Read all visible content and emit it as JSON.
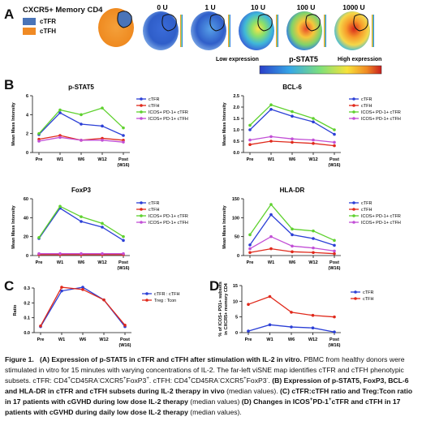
{
  "panelA": {
    "letter": "A",
    "title": "CXCR5+ Memory CD4",
    "legend": [
      {
        "label": "cTFR",
        "color": "#4a74b8"
      },
      {
        "label": "cTFH",
        "color": "#f08a24"
      }
    ],
    "doses": [
      "0 U",
      "1 U",
      "10 U",
      "100 U",
      "1000 U"
    ],
    "colorbar_low": "Low expression",
    "colorbar_title": "p-STAT5",
    "colorbar_high": "High expression"
  },
  "panelB": {
    "letter": "B",
    "ylabel": "Mean Mass Intensity"
  },
  "panelC": {
    "letter": "C",
    "ylabel": "Ratio"
  },
  "panelD": {
    "letter": "D",
    "ylabel": "% of ICOS+ PD1+ subsets in CXCR5+ memory CD4"
  },
  "colors": {
    "cTFR": "#2b3fd6",
    "cTFH": "#e0291b",
    "icos_tfr": "#5fd12e",
    "icos_tfh": "#c24fd6"
  },
  "chart_data": [
    {
      "type": "line",
      "title": "p-STAT5",
      "ylabel": "Mean Mass Intensity",
      "x": [
        "Pre",
        "W1",
        "W6",
        "W12",
        "Post (W16)"
      ],
      "ylim": [
        0,
        6
      ],
      "yticks": [
        0,
        2,
        4,
        6
      ],
      "series": [
        {
          "name": "cTFR",
          "values": [
            1.9,
            4.2,
            3.0,
            2.8,
            1.8
          ]
        },
        {
          "name": "cTFH",
          "values": [
            1.4,
            1.8,
            1.3,
            1.5,
            1.3
          ]
        },
        {
          "name": "ICOS+ PD-1+ cTFR",
          "values": [
            2.0,
            4.5,
            4.0,
            4.7,
            2.6
          ]
        },
        {
          "name": "ICOS+ PD-1+ cTFH",
          "values": [
            1.2,
            1.6,
            1.3,
            1.3,
            1.1
          ]
        }
      ]
    },
    {
      "type": "line",
      "title": "BCL-6",
      "ylabel": "Mean Mass Intensity",
      "x": [
        "Pre",
        "W1",
        "W6",
        "W12",
        "Post (W16)"
      ],
      "ylim": [
        0,
        2.5
      ],
      "yticks": [
        0.0,
        0.5,
        1.0,
        1.5,
        2.0,
        2.5
      ],
      "series": [
        {
          "name": "cTFR",
          "values": [
            1.0,
            1.9,
            1.6,
            1.35,
            0.8
          ]
        },
        {
          "name": "cTFH",
          "values": [
            0.35,
            0.5,
            0.45,
            0.4,
            0.3
          ]
        },
        {
          "name": "ICOS+ PD-1+ cTFR",
          "values": [
            1.2,
            2.1,
            1.8,
            1.5,
            1.0
          ]
        },
        {
          "name": "ICOS+ PD-1+ cTFH",
          "values": [
            0.55,
            0.7,
            0.6,
            0.55,
            0.45
          ]
        }
      ]
    },
    {
      "type": "line",
      "title": "FoxP3",
      "ylabel": "Mean Mass Intensity",
      "x": [
        "Pre",
        "W1",
        "W6",
        "W12",
        "Post (W16)"
      ],
      "ylim": [
        0,
        60
      ],
      "yticks": [
        0,
        20,
        40,
        60
      ],
      "series": [
        {
          "name": "cTFR",
          "values": [
            18,
            50,
            36,
            30,
            16
          ]
        },
        {
          "name": "cTFH",
          "values": [
            1,
            1,
            1,
            1,
            1
          ]
        },
        {
          "name": "ICOS+ PD-1+ cTFR",
          "values": [
            19,
            52,
            41,
            34,
            20
          ]
        },
        {
          "name": "ICOS+ PD-1+ cTFH",
          "values": [
            2,
            2,
            2,
            2,
            2
          ]
        }
      ]
    },
    {
      "type": "line",
      "title": "HLA-DR",
      "ylabel": "Mean Mass Intensity",
      "x": [
        "Pre",
        "W1",
        "W6",
        "W12",
        "Post (W16)"
      ],
      "ylim": [
        0,
        150
      ],
      "yticks": [
        0,
        50,
        100,
        150
      ],
      "series": [
        {
          "name": "cTFR",
          "values": [
            28,
            108,
            55,
            45,
            27
          ]
        },
        {
          "name": "cTFH",
          "values": [
            8,
            18,
            10,
            8,
            5
          ]
        },
        {
          "name": "ICOS+ PD-1+ cTFR",
          "values": [
            55,
            135,
            70,
            65,
            40
          ]
        },
        {
          "name": "ICOS+ PD-1+ cTFH",
          "values": [
            18,
            50,
            25,
            20,
            12
          ]
        }
      ]
    },
    {
      "type": "line",
      "title": "",
      "ylabel": "Ratio",
      "x": [
        "Pre",
        "W1",
        "W6",
        "W12",
        "Post (W16)"
      ],
      "ylim": [
        0,
        0.3
      ],
      "yticks": [
        0.0,
        0.1,
        0.2,
        0.3
      ],
      "series": [
        {
          "name": "cTFR : cTFH",
          "values": [
            0.04,
            0.28,
            0.305,
            0.22,
            0.04
          ]
        },
        {
          "name": "Treg : Tcon",
          "values": [
            0.045,
            0.305,
            0.29,
            0.22,
            0.05
          ]
        }
      ]
    },
    {
      "type": "line",
      "title": "",
      "ylabel": "% of ICOS+ PD1+ subsets in CXCR5+ memory CD4",
      "x": [
        "Pre",
        "W1",
        "W6",
        "W12",
        "Post (W16)"
      ],
      "ylim": [
        0,
        15
      ],
      "yticks": [
        0,
        5,
        10,
        15
      ],
      "series": [
        {
          "name": "cTFR",
          "values": [
            0.5,
            2.5,
            1.8,
            1.5,
            0.2
          ]
        },
        {
          "name": "cTFH",
          "values": [
            9.0,
            11.5,
            6.5,
            5.5,
            5.0
          ]
        }
      ]
    }
  ],
  "caption": {
    "fig": "Figure 1.",
    "a_head": "(A) Expression of p-STAT5 in cTFR and cTFH after stimulation with IL-2 in vitro.",
    "a_body1": "PBMC from healthy donors were stimulated in vitro for 15 minutes with varying concentrations of IL-2. The far-left viSNE map identifies cTFR and cTFH phenotypic subsets. cTFR: CD4",
    "a_sup1": "+",
    "a_body2": "CD45RA",
    "a_sup2": "-",
    "a_body3": "CXCR5",
    "a_sup3": "+",
    "a_body4": "FoxP3",
    "a_sup4": "+",
    "a_body5": ". cTFH: CD4",
    "a_sup5": "+",
    "a_body6": "CD45RA",
    "a_sup6": "-",
    "a_body7": "CXCR5",
    "a_sup7": "+",
    "a_body8": "FoxP3",
    "a_sup8": "-",
    "a_body9": ".",
    "b_head": "(B) Expression of p-STAT5, FoxP3, BCL-6 and HLA-DR in cTFR and cTFH subsets during IL-2 therapy in vivo",
    "b_body": "(median values).",
    "c_head": "(C) cTFR:cTFH ratio and Treg:Tcon ratio in 17 patients with cGVHD during low dose IL-2 therapy",
    "c_body": "(median values)",
    "d_head1": "(D) Changes in ICOS",
    "d_sup1": "+",
    "d_head2": "PD-1",
    "d_sup2": "+",
    "d_head3": "cTFR and cTFH in 17 patients with cGVHD during daily low dose IL-2 therapy",
    "d_body": "(median values)."
  }
}
